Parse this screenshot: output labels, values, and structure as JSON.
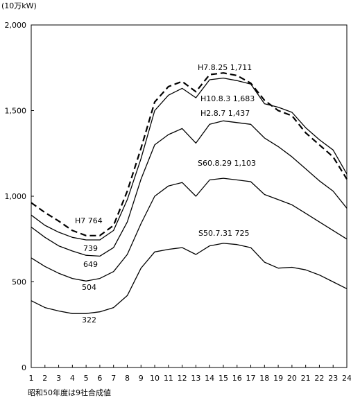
{
  "chart_data": {
    "type": "line",
    "unit_label": "(10万kW)",
    "note": "昭和50年度は9社合成値",
    "x": [
      1,
      2,
      3,
      4,
      5,
      6,
      7,
      8,
      9,
      10,
      11,
      12,
      13,
      14,
      15,
      16,
      17,
      18,
      19,
      20,
      21,
      22,
      23,
      24
    ],
    "x_tick_labels": [
      "1",
      "2",
      "3",
      "4",
      "5",
      "6",
      "7",
      "8",
      "9",
      "10",
      "11",
      "12",
      "13",
      "14",
      "15",
      "16",
      "17",
      "18",
      "19",
      "20",
      "21",
      "22",
      "23",
      "24"
    ],
    "ylim": [
      0,
      2000
    ],
    "y_ticks": [
      0,
      500,
      1000,
      1500,
      2000
    ],
    "y_tick_labels": [
      "0",
      "500",
      "1,000",
      "1,500",
      "2,000"
    ],
    "series": [
      {
        "id": "h7",
        "style": "dashed",
        "values": [
          962,
          905,
          855,
          800,
          770,
          770,
          830,
          1030,
          1280,
          1550,
          1640,
          1670,
          1610,
          1710,
          1720,
          1705,
          1660,
          1560,
          1500,
          1470,
          1370,
          1300,
          1230,
          1100
        ],
        "peak_label": "H7.8.25  1,711",
        "min_label": "H7  764"
      },
      {
        "id": "h10",
        "style": "solid",
        "values": [
          890,
          830,
          790,
          760,
          745,
          745,
          800,
          980,
          1220,
          1500,
          1590,
          1630,
          1575,
          1680,
          1690,
          1675,
          1655,
          1540,
          1520,
          1490,
          1400,
          1330,
          1270,
          1130
        ],
        "peak_label": "H10.8.3  1,683",
        "min_label": "739"
      },
      {
        "id": "h2",
        "style": "solid",
        "values": [
          820,
          760,
          710,
          680,
          655,
          650,
          700,
          850,
          1100,
          1300,
          1360,
          1395,
          1310,
          1420,
          1440,
          1430,
          1420,
          1340,
          1290,
          1230,
          1160,
          1090,
          1030,
          930
        ],
        "peak_label": "H2.8.7  1,437",
        "min_label": "649"
      },
      {
        "id": "s60",
        "style": "solid",
        "values": [
          640,
          590,
          550,
          520,
          505,
          520,
          560,
          660,
          840,
          1000,
          1060,
          1080,
          1000,
          1095,
          1105,
          1095,
          1085,
          1010,
          980,
          950,
          900,
          850,
          800,
          750
        ],
        "peak_label": "S60.8.29  1,103",
        "min_label": "504"
      },
      {
        "id": "s50",
        "style": "solid",
        "values": [
          390,
          350,
          330,
          315,
          315,
          325,
          350,
          420,
          580,
          675,
          690,
          700,
          660,
          710,
          725,
          718,
          700,
          615,
          580,
          585,
          570,
          540,
          500,
          460
        ],
        "peak_label": "S50.7.31  725",
        "min_label": "322"
      }
    ]
  }
}
